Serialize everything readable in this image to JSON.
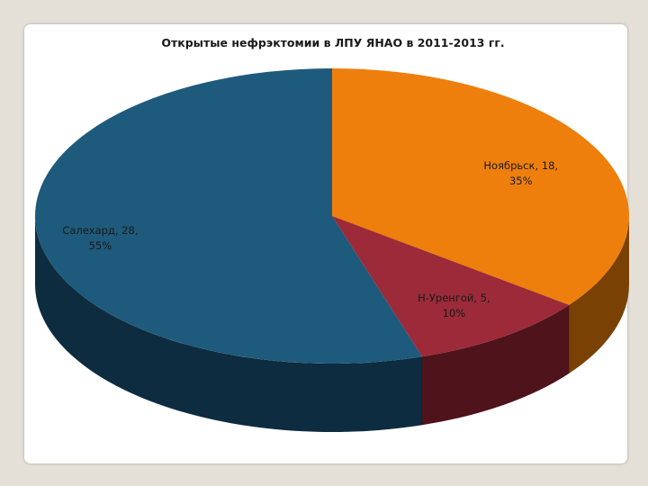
{
  "chart_data": {
    "type": "pie",
    "title": "Открытые нефрэктомии в ЛПУ ЯНАО в 2011-2013 гг.",
    "style": "3d",
    "legend": "none",
    "slices": [
      {
        "name": "Ноябрьск",
        "value": 18,
        "percent": 35,
        "label_line1": "Ноябрьск, 18,",
        "label_line2": "35%",
        "color": "#ee7f0c",
        "side_color": "#7a4104"
      },
      {
        "name": "Н-Уренгой",
        "value": 5,
        "percent": 10,
        "label_line1": "Н-Уренгой, 5,",
        "label_line2": "10%",
        "color": "#9c2a39",
        "side_color": "#4f131b"
      },
      {
        "name": "Салехард",
        "value": 28,
        "percent": 55,
        "label_line1": "Салехард, 28,",
        "label_line2": "55%",
        "color": "#1e5a7c",
        "side_color": "#0e2c3f"
      }
    ]
  }
}
